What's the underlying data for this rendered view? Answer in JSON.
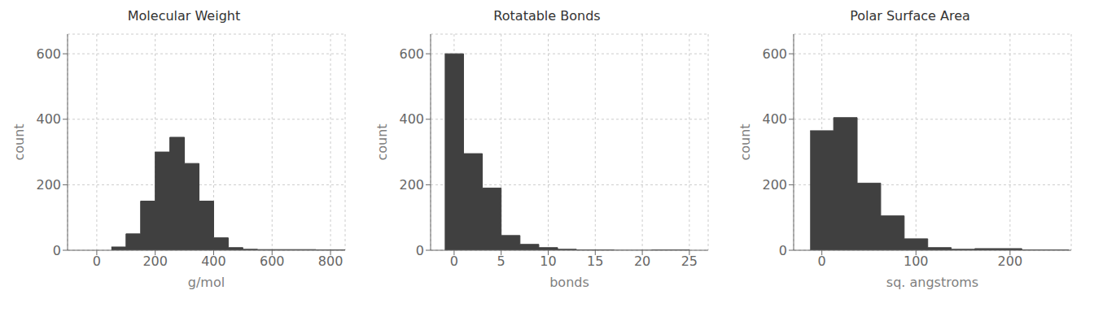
{
  "chart_data": [
    {
      "type": "histogram",
      "title": "Molecular Weight",
      "xlabel": "g/mol",
      "ylabel": "count",
      "bins": [
        50,
        100,
        150,
        200,
        250,
        300,
        350,
        400,
        450,
        500,
        550,
        750,
        850
      ],
      "values": [
        10,
        50,
        150,
        300,
        345,
        265,
        150,
        38,
        8,
        3,
        2,
        1
      ],
      "xlim": [
        -100,
        850
      ],
      "ylim": [
        0,
        660
      ],
      "xticks": [
        0,
        200,
        400,
        600,
        800
      ],
      "yticks": [
        0,
        200,
        400,
        600
      ],
      "grid": true,
      "color": "#404040"
    },
    {
      "type": "histogram",
      "title": "Rotatable Bonds",
      "xlabel": "bonds",
      "ylabel": "count",
      "bins": [
        -1,
        1,
        3,
        5,
        7,
        9,
        11,
        13,
        15,
        17,
        19,
        21,
        25
      ],
      "values": [
        600,
        295,
        190,
        45,
        18,
        8,
        3,
        1,
        1,
        0,
        0,
        1
      ],
      "xlim": [
        -2.5,
        27
      ],
      "ylim": [
        0,
        660
      ],
      "xticks": [
        0,
        5,
        10,
        15,
        20,
        25
      ],
      "yticks": [
        0,
        200,
        400,
        600
      ],
      "grid": true,
      "color": "#404040"
    },
    {
      "type": "histogram",
      "title": "Polar Surface Area",
      "xlabel": "sq. angstroms",
      "ylabel": "count",
      "bins": [
        -12.5,
        12.5,
        37.5,
        62.5,
        87.5,
        112.5,
        137.5,
        162.5,
        212.5,
        262.5
      ],
      "values": [
        365,
        405,
        205,
        105,
        35,
        8,
        3,
        5,
        1
      ],
      "xlim": [
        -30,
        265
      ],
      "ylim": [
        0,
        660
      ],
      "xticks": [
        0,
        100,
        200
      ],
      "yticks": [
        0,
        200,
        400,
        600
      ],
      "grid": true,
      "color": "#404040"
    }
  ]
}
